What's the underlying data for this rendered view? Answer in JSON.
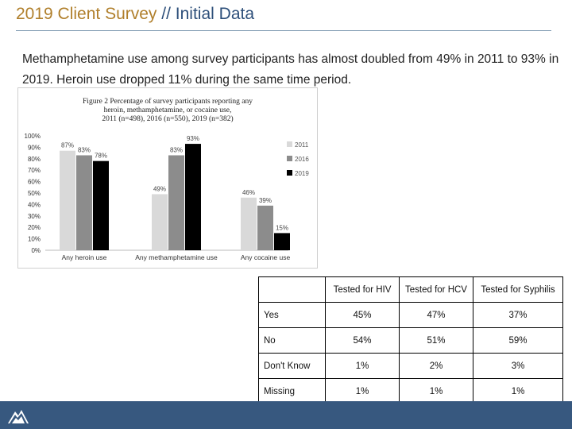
{
  "slide": {
    "title_main": "2019 Client Survey",
    "title_sep": "//",
    "title_sub": "Initial Data",
    "intro": "Methamphetamine use among survey participants has almost doubled from 49% in 2011 to 93% in 2019. Heroin use dropped 11% during the same time period."
  },
  "chart_data": {
    "type": "bar",
    "title": "Figure 2  Percentage of survey participants reporting any heroin, methamphetamine, or cocaine use, 2011 (n=498), 2016 (n=550), 2019 (n=382)",
    "title_lines": [
      "Figure 2  Percentage of survey participants reporting any",
      "heroin, methamphetamine, or cocaine use,",
      "2011 (n=498), 2016 (n=550), 2019 (n=382)"
    ],
    "categories": [
      "Any heroin use",
      "Any methamphetamine use",
      "Any cocaine use"
    ],
    "series": [
      {
        "name": "2011",
        "values": [
          87,
          49,
          46
        ],
        "color": "#d9d9d9"
      },
      {
        "name": "2016",
        "values": [
          83,
          83,
          39
        ],
        "color": "#8c8c8c"
      },
      {
        "name": "2019",
        "values": [
          78,
          93,
          15
        ],
        "color": "#000000"
      }
    ],
    "data_labels": [
      [
        "87%",
        "49%",
        "46%"
      ],
      [
        "83%",
        "83%",
        "39%"
      ],
      [
        "78%",
        "93%",
        "15%"
      ]
    ],
    "ylim": [
      0,
      100
    ],
    "yticks": [
      "0%",
      "10%",
      "20%",
      "30%",
      "40%",
      "50%",
      "60%",
      "70%",
      "80%",
      "90%",
      "100%"
    ],
    "legend_position": "right",
    "grid": false,
    "xlabel": "",
    "ylabel": ""
  },
  "table": {
    "headers": [
      "Tested for HIV",
      "Tested for HCV",
      "Tested for Syphilis"
    ],
    "rows": [
      {
        "label": "Yes",
        "values": [
          "45%",
          "47%",
          "37%"
        ]
      },
      {
        "label": "No",
        "values": [
          "54%",
          "51%",
          "59%"
        ]
      },
      {
        "label": "Don't Know",
        "values": [
          "1%",
          "2%",
          "3%"
        ]
      },
      {
        "label": "Missing",
        "values": [
          "1%",
          "1%",
          "1%"
        ]
      }
    ]
  },
  "footer": {
    "logo_icon": "mountain-logo-icon",
    "color": "#37587f"
  }
}
